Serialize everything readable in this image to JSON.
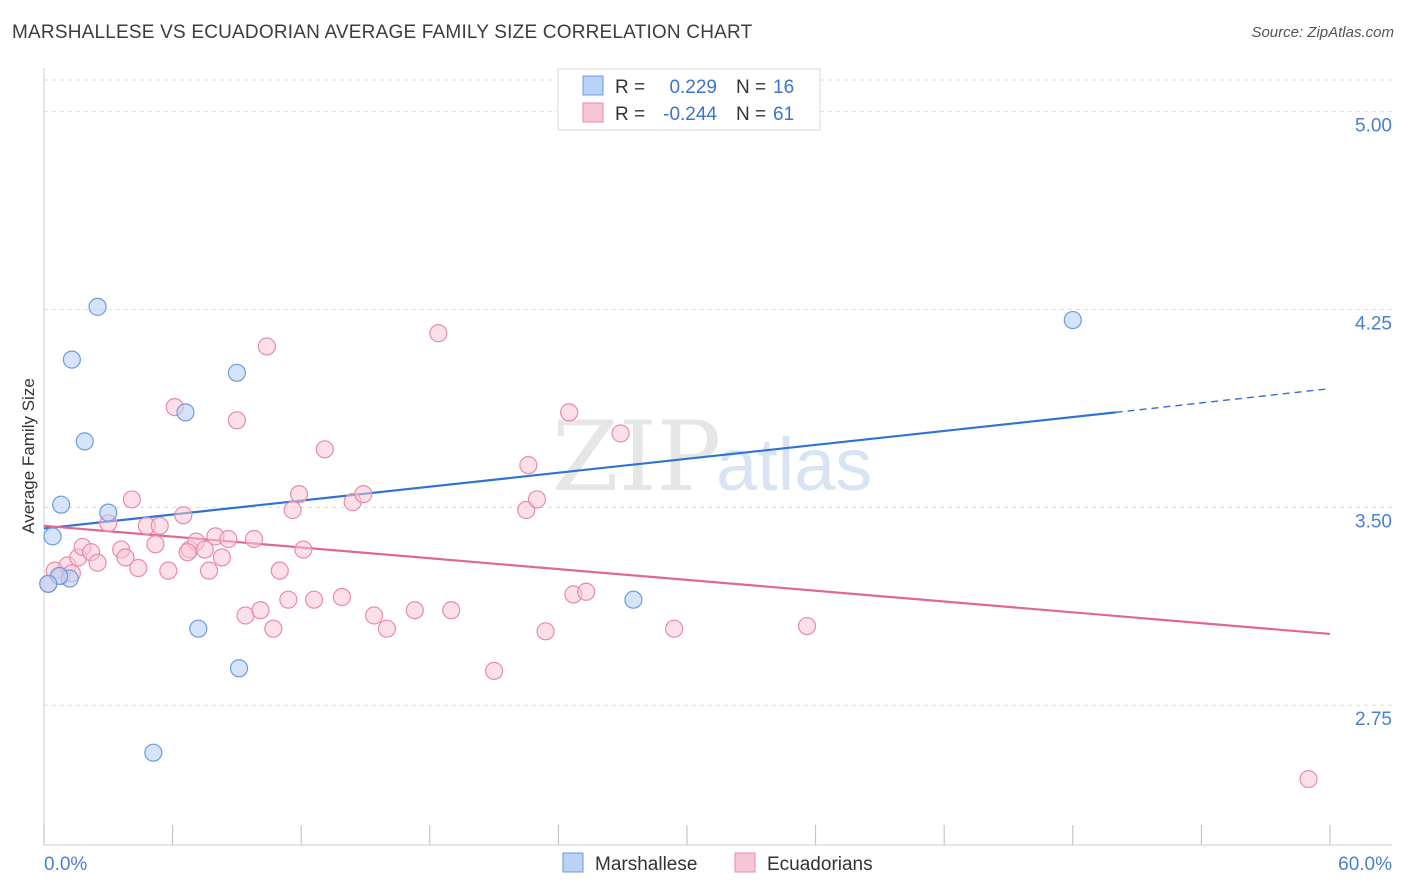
{
  "title": "MARSHALLESE VS ECUADORIAN AVERAGE FAMILY SIZE CORRELATION CHART",
  "source": "Source: ZipAtlas.com",
  "watermark": {
    "zip": "ZIP",
    "atlas": "atlas"
  },
  "colors": {
    "marshallese_fill": "#b9d2f5",
    "marshallese_stroke": "#6b9be0",
    "marshallese_line": "#2f72d3",
    "ecuadorian_fill": "#f7c6d6",
    "ecuadorian_stroke": "#e98aab",
    "ecuadorian_line": "#e0678f",
    "grid": "#dddddd",
    "tick_label": "#4a7fd0"
  },
  "legend_top": {
    "rows": [
      {
        "r_label": "R =",
        "r_value": "0.229",
        "n_label": "N =",
        "n_value": "16"
      },
      {
        "r_label": "R =",
        "r_value": "-0.244",
        "n_label": "N =",
        "n_value": "61"
      }
    ]
  },
  "legend_bottom": [
    "Marshallese",
    "Ecuadorians"
  ],
  "chart_data": {
    "type": "scatter",
    "title": "MARSHALLESE VS ECUADORIAN AVERAGE FAMILY SIZE CORRELATION CHART",
    "xlabel": "",
    "ylabel": "Average Family Size",
    "xlim": [
      0,
      60
    ],
    "ylim": [
      2.22,
      5.12
    ],
    "x_tick_labels": [
      "0.0%",
      "60.0%"
    ],
    "y_ticks": [
      2.75,
      3.5,
      4.25,
      5.0
    ],
    "y_tick_labels": [
      "2.75",
      "3.50",
      "4.25",
      "5.00"
    ],
    "series": [
      {
        "name": "Marshallese",
        "R": 0.229,
        "N": 16,
        "points": [
          [
            0.4,
            3.39
          ],
          [
            0.8,
            3.51
          ],
          [
            1.3,
            4.06
          ],
          [
            1.9,
            3.75
          ],
          [
            2.5,
            4.26
          ],
          [
            3.0,
            3.48
          ],
          [
            1.2,
            3.23
          ],
          [
            0.7,
            3.24
          ],
          [
            6.6,
            3.86
          ],
          [
            9.0,
            4.01
          ],
          [
            7.2,
            3.04
          ],
          [
            9.1,
            2.89
          ],
          [
            5.1,
            2.57
          ],
          [
            27.5,
            3.15
          ],
          [
            48.0,
            4.21
          ],
          [
            0.2,
            3.21
          ]
        ],
        "trend": {
          "x0": 0,
          "y0": 3.42,
          "x1": 50,
          "y1": 3.86,
          "dashed_to_x": 60,
          "dashed_to_y": 3.95
        }
      },
      {
        "name": "Ecuadorians",
        "R": -0.244,
        "N": 61,
        "points": [
          [
            0.2,
            3.21
          ],
          [
            0.5,
            3.26
          ],
          [
            0.8,
            3.24
          ],
          [
            1.1,
            3.28
          ],
          [
            1.3,
            3.25
          ],
          [
            1.6,
            3.31
          ],
          [
            1.8,
            3.35
          ],
          [
            2.2,
            3.33
          ],
          [
            2.5,
            3.29
          ],
          [
            3.0,
            3.44
          ],
          [
            3.6,
            3.34
          ],
          [
            3.8,
            3.31
          ],
          [
            4.1,
            3.53
          ],
          [
            4.4,
            3.27
          ],
          [
            4.8,
            3.43
          ],
          [
            5.2,
            3.36
          ],
          [
            5.4,
            3.43
          ],
          [
            5.8,
            3.26
          ],
          [
            6.1,
            3.88
          ],
          [
            6.5,
            3.47
          ],
          [
            6.8,
            3.34
          ],
          [
            7.1,
            3.37
          ],
          [
            7.5,
            3.34
          ],
          [
            7.7,
            3.26
          ],
          [
            8.0,
            3.39
          ],
          [
            8.3,
            3.31
          ],
          [
            8.6,
            3.38
          ],
          [
            9.0,
            3.83
          ],
          [
            9.4,
            3.09
          ],
          [
            9.8,
            3.38
          ],
          [
            10.1,
            3.11
          ],
          [
            10.4,
            4.11
          ],
          [
            10.7,
            3.04
          ],
          [
            11.0,
            3.26
          ],
          [
            11.4,
            3.15
          ],
          [
            11.6,
            3.49
          ],
          [
            11.9,
            3.55
          ],
          [
            12.1,
            3.34
          ],
          [
            12.6,
            3.15
          ],
          [
            13.1,
            3.72
          ],
          [
            13.9,
            3.16
          ],
          [
            14.4,
            3.52
          ],
          [
            14.9,
            3.55
          ],
          [
            15.4,
            3.09
          ],
          [
            16.0,
            3.04
          ],
          [
            17.3,
            3.11
          ],
          [
            18.4,
            4.16
          ],
          [
            19.0,
            3.11
          ],
          [
            21.0,
            2.88
          ],
          [
            22.5,
            3.49
          ],
          [
            22.6,
            3.66
          ],
          [
            23.0,
            3.53
          ],
          [
            23.4,
            3.03
          ],
          [
            24.5,
            3.86
          ],
          [
            24.7,
            3.17
          ],
          [
            25.3,
            3.18
          ],
          [
            26.9,
            3.78
          ],
          [
            29.4,
            3.04
          ],
          [
            35.6,
            3.05
          ],
          [
            59.0,
            2.47
          ],
          [
            6.7,
            3.33
          ]
        ],
        "trend": {
          "x0": 0,
          "y0": 3.43,
          "x1": 60,
          "y1": 3.02
        }
      }
    ]
  }
}
